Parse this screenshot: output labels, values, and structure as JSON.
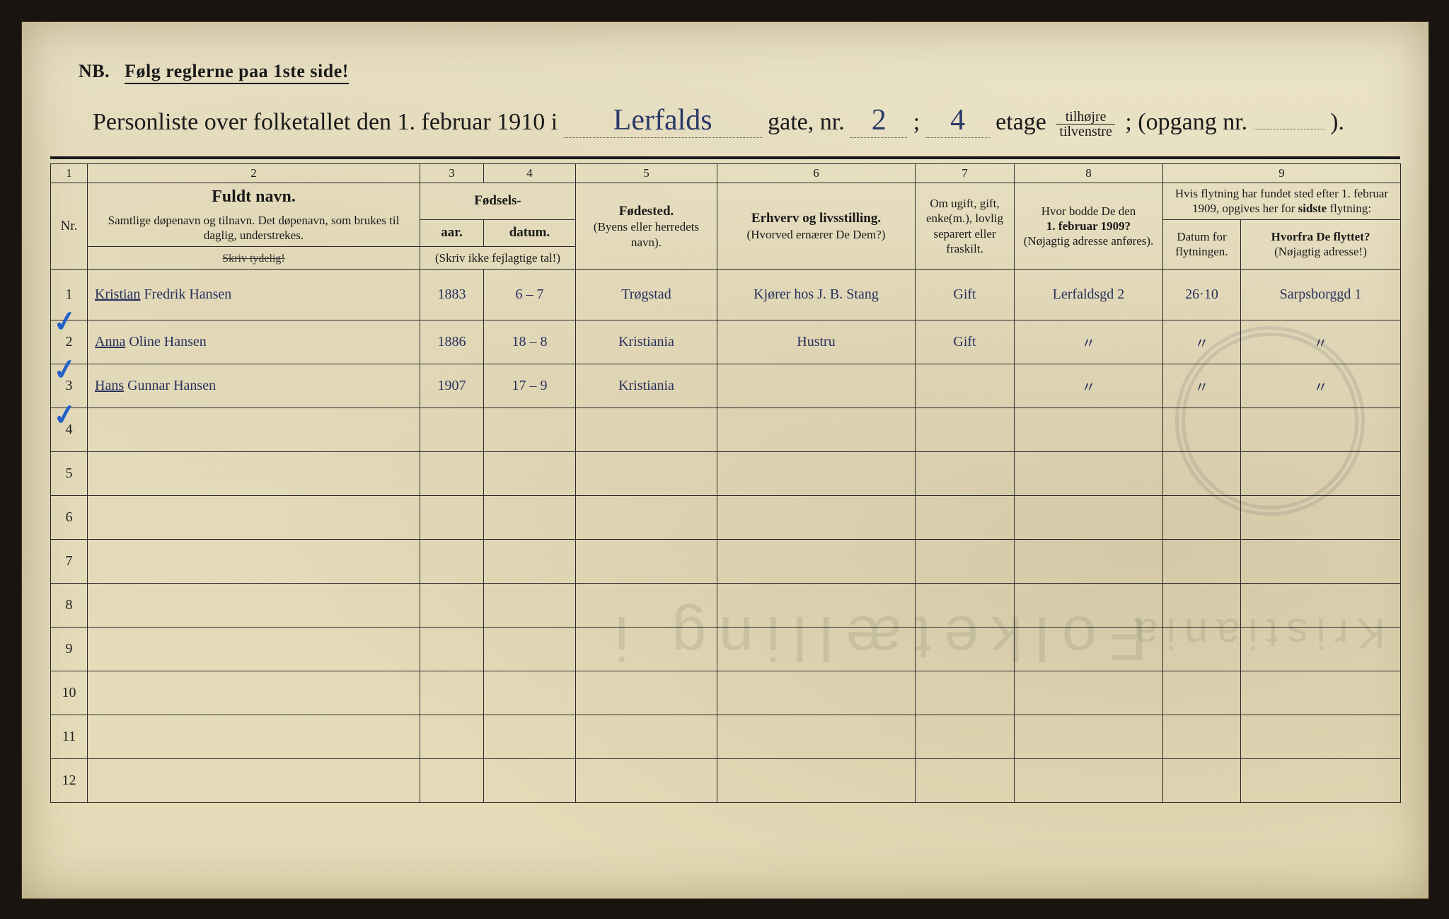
{
  "colors": {
    "paper": "#e9e1c4",
    "ink_print": "#1a1a1a",
    "ink_hand": "#2a3a6a",
    "tick_blue": "#2360c9",
    "border": "#2a2a2a"
  },
  "typography": {
    "printed_font": "Times New Roman",
    "handwritten_font": "Brush Script MT",
    "title_fontsize_pt": 25,
    "header_fontsize_pt": 14,
    "hand_fontsize_pt": 30
  },
  "nb_line": {
    "prefix": "NB.",
    "text": "Følg reglerne paa 1ste side!"
  },
  "title": {
    "pre": "Personliste over folketallet den 1. februar 1910 i",
    "street_hand": "Lerfalds",
    "gate_label": "gate, nr.",
    "house_no_hand": "2",
    "sep": ";",
    "floor_hand": "4",
    "etage_label": "etage",
    "fraction_top": "tilhøjre",
    "fraction_bot": "tilvenstre",
    "post_semicolon": ";",
    "opgang_label": "(opgang nr.",
    "opgang_val": "",
    "close": ")."
  },
  "header": {
    "colnums": [
      "1",
      "2",
      "3",
      "4",
      "5",
      "6",
      "7",
      "8",
      "9"
    ],
    "col2_title": "Fuldt navn.",
    "col2_sub": "Samtlige døpenavn og tilnavn. Det døpenavn, som brukes til daglig, understrekes.",
    "col34_group": "Fødsels-",
    "col3": "aar.",
    "col4": "datum.",
    "col34_note": "(Skriv ikke fejlagtige tal!)",
    "col5_title": "Fødested.",
    "col5_sub": "(Byens eller herredets navn).",
    "col6_title": "Erhverv og livsstilling.",
    "col6_sub": "(Hvorved ernærer De Dem?)",
    "col7": "Om ugift, gift, enke(m.), lovlig separert eller fraskilt.",
    "col8_title": "Hvor bodde De den 1. februar 1909?",
    "col8_sub": "(Nøjagtig adresse anføres).",
    "col9_top": "Hvis flytning har fundet sted efter 1. februar 1909, opgives her for sidste flytning:",
    "col9a": "Datum for flytningen.",
    "col9b_title": "Hvorfra De flyttet?",
    "col9b_sub": "(Nøjagtig adresse!)",
    "skriv": "Skriv tydelig!"
  },
  "rows": [
    {
      "nr": "1",
      "tick": true,
      "name_underlined": "Kristian",
      "name_rest": "Fredrik Hansen",
      "year": "1883",
      "date": "6 – 7",
      "birthplace": "Trøgstad",
      "occupation": "Kjører hos J. B. Stang",
      "marital": "Gift",
      "addr1909": "Lerfaldsgd 2",
      "move_date": "26·10",
      "move_from": "Sarpsborggd 1"
    },
    {
      "nr": "2",
      "tick": true,
      "name_underlined": "Anna",
      "name_rest": "Oline Hansen",
      "year": "1886",
      "date": "18 – 8",
      "birthplace": "Kristiania",
      "occupation": "Hustru",
      "marital": "Gift",
      "addr1909": "〃",
      "move_date": "〃",
      "move_from": "〃"
    },
    {
      "nr": "3",
      "tick": true,
      "name_underlined": "Hans",
      "name_rest": "Gunnar Hansen",
      "year": "1907",
      "date": "17 – 9",
      "birthplace": "Kristiania",
      "occupation": "",
      "marital": "",
      "addr1909": "〃",
      "move_date": "〃",
      "move_from": "〃"
    }
  ],
  "blank_row_numbers": [
    "4",
    "5",
    "6",
    "7",
    "8",
    "9",
    "10",
    "11",
    "12"
  ],
  "bleed_text_1": "Folketælling i",
  "bleed_text_2": "Kristiania"
}
